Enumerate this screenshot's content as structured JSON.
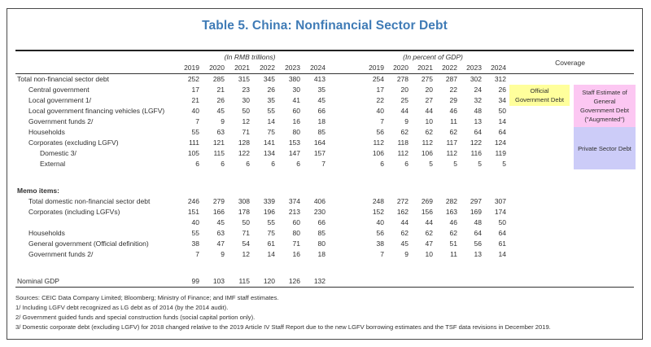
{
  "title": "Table 5. China: Nonfinancial Sector Debt",
  "colors": {
    "title_blue": "#3f7bb6",
    "coverage_yellow": "#ffff9c",
    "coverage_pink": "#fcc7f2",
    "coverage_lavender": "#ccccf8"
  },
  "table": {
    "unit_rmb": "(In RMB trillions)",
    "unit_gdp": "(In percent of GDP)",
    "coverage_header": "Coverage",
    "years": [
      "2019",
      "2020",
      "2021",
      "2022",
      "2023",
      "2024"
    ],
    "rows": [
      {
        "label": "Total non-financial sector debt",
        "indent": 0,
        "rmb": [
          252,
          285,
          315,
          345,
          380,
          413
        ],
        "gdp": [
          254,
          278,
          275,
          287,
          302,
          312
        ]
      },
      {
        "label": "Central government",
        "indent": 1,
        "rmb": [
          17,
          21,
          23,
          26,
          30,
          35
        ],
        "gdp": [
          17,
          20,
          20,
          22,
          24,
          26
        ]
      },
      {
        "label": "Local government 1/",
        "indent": 1,
        "rmb": [
          21,
          26,
          30,
          35,
          41,
          45
        ],
        "gdp": [
          22,
          25,
          27,
          29,
          32,
          34
        ]
      },
      {
        "label": "Local government financing vehicles (LGFV)",
        "indent": 1,
        "rmb": [
          40,
          45,
          50,
          55,
          60,
          66
        ],
        "gdp": [
          40,
          44,
          44,
          46,
          48,
          50
        ]
      },
      {
        "label": "Government funds 2/",
        "indent": 1,
        "rmb": [
          7,
          9,
          12,
          14,
          16,
          18
        ],
        "gdp": [
          7,
          9,
          10,
          11,
          13,
          14
        ]
      },
      {
        "label": "Households",
        "indent": 1,
        "rmb": [
          55,
          63,
          71,
          75,
          80,
          85
        ],
        "gdp": [
          56,
          62,
          62,
          62,
          64,
          64
        ]
      },
      {
        "label": "Corporates (excluding LGFV)",
        "indent": 1,
        "rmb": [
          111,
          121,
          128,
          141,
          153,
          164
        ],
        "gdp": [
          112,
          118,
          112,
          117,
          122,
          124
        ]
      },
      {
        "label": "Domestic 3/",
        "indent": 2,
        "rmb": [
          105,
          115,
          122,
          134,
          147,
          157
        ],
        "gdp": [
          106,
          112,
          106,
          112,
          116,
          119
        ]
      },
      {
        "label": "External",
        "indent": 2,
        "rmb": [
          6,
          6,
          6,
          6,
          6,
          7
        ],
        "gdp": [
          6,
          6,
          5,
          5,
          5,
          5
        ]
      },
      {
        "type": "spacer"
      },
      {
        "type": "heading",
        "label": "Memo items:"
      },
      {
        "label": "Total domestic non-financial sector debt",
        "indent": 1,
        "rmb": [
          246,
          279,
          308,
          339,
          374,
          406
        ],
        "gdp": [
          248,
          272,
          269,
          282,
          297,
          307
        ]
      },
      {
        "label": "Corporates (including LGFVs)",
        "indent": 1,
        "rmb": [
          151,
          166,
          178,
          196,
          213,
          230
        ],
        "gdp": [
          152,
          162,
          156,
          163,
          169,
          174
        ]
      },
      {
        "label": "",
        "indent": 1,
        "rmb": [
          40,
          45,
          50,
          55,
          60,
          66
        ],
        "gdp": [
          40,
          44,
          44,
          46,
          48,
          50
        ]
      },
      {
        "label": "Households",
        "indent": 1,
        "rmb": [
          55,
          63,
          71,
          75,
          80,
          85
        ],
        "gdp": [
          56,
          62,
          62,
          62,
          64,
          64
        ]
      },
      {
        "label": "General government (Official definition)",
        "indent": 1,
        "rmb": [
          38,
          47,
          54,
          61,
          71,
          80
        ],
        "gdp": [
          38,
          45,
          47,
          51,
          56,
          61
        ]
      },
      {
        "label": "Government funds 2/",
        "indent": 1,
        "rmb": [
          7,
          9,
          12,
          14,
          16,
          18
        ],
        "gdp": [
          7,
          9,
          10,
          11,
          13,
          14
        ]
      },
      {
        "type": "spacer"
      },
      {
        "label": "Nominal GDP",
        "indent": 0,
        "rmb": [
          99,
          103,
          115,
          120,
          126,
          132
        ],
        "gdp": [
          null,
          null,
          null,
          null,
          null,
          null
        ]
      }
    ],
    "coverage_boxes": [
      {
        "label": "Official Government Debt"
      },
      {
        "label": "Staff Estimate of General Government Debt (\"Augmented\")"
      },
      {
        "label": "Private Sector Debt"
      }
    ]
  },
  "footnotes": [
    "Sources: CEIC Data Company Limited; Bloomberg; Ministry of Finance; and IMF staff estimates.",
    "1/ Including LGFV debt recognized as LG debt as of 2014 (by the 2014 audit).",
    "2/ Government guided funds and special construction funds (social capital portion only).",
    "3/ Domestic corporate debt (excluding LGFV) for 2018 changed relative to the 2019 Article IV Staff Report due to the new LGFV borrowing estimates and the TSF data revisions in December 2019."
  ]
}
